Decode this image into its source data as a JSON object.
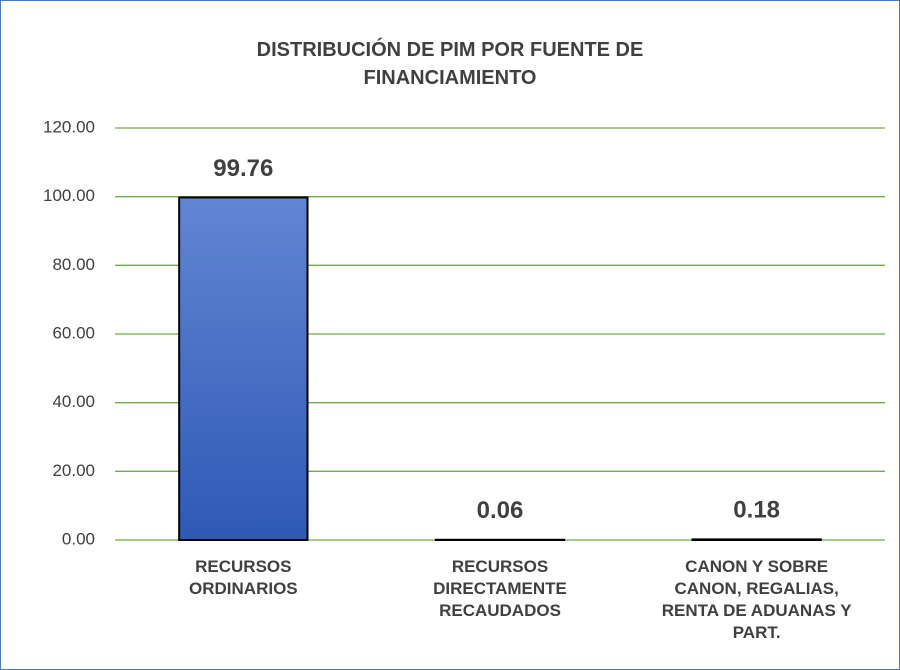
{
  "chart_data": {
    "type": "bar",
    "title": "DISTRIBUCIÓN DE PIM POR FUENTE DE FINANCIAMIENTO",
    "categories": [
      "RECURSOS ORDINARIOS",
      "RECURSOS DIRECTAMENTE RECAUDADOS",
      "CANON Y SOBRE CANON, REGALIAS, RENTA DE ADUANAS Y PART."
    ],
    "values": [
      99.76,
      0.06,
      0.18
    ],
    "color": "#4472c4",
    "ylim": [
      0,
      120
    ],
    "yticks": [
      {
        "value": 0,
        "label": "0.00"
      },
      {
        "value": 20,
        "label": "20.00"
      },
      {
        "value": 40,
        "label": "40.00"
      },
      {
        "value": 60,
        "label": "60.00"
      },
      {
        "value": 80,
        "label": "80.00"
      },
      {
        "value": 100,
        "label": "100.00"
      },
      {
        "value": 120,
        "label": "120.00"
      }
    ],
    "grid": true,
    "grid_color": "#70ad47"
  }
}
